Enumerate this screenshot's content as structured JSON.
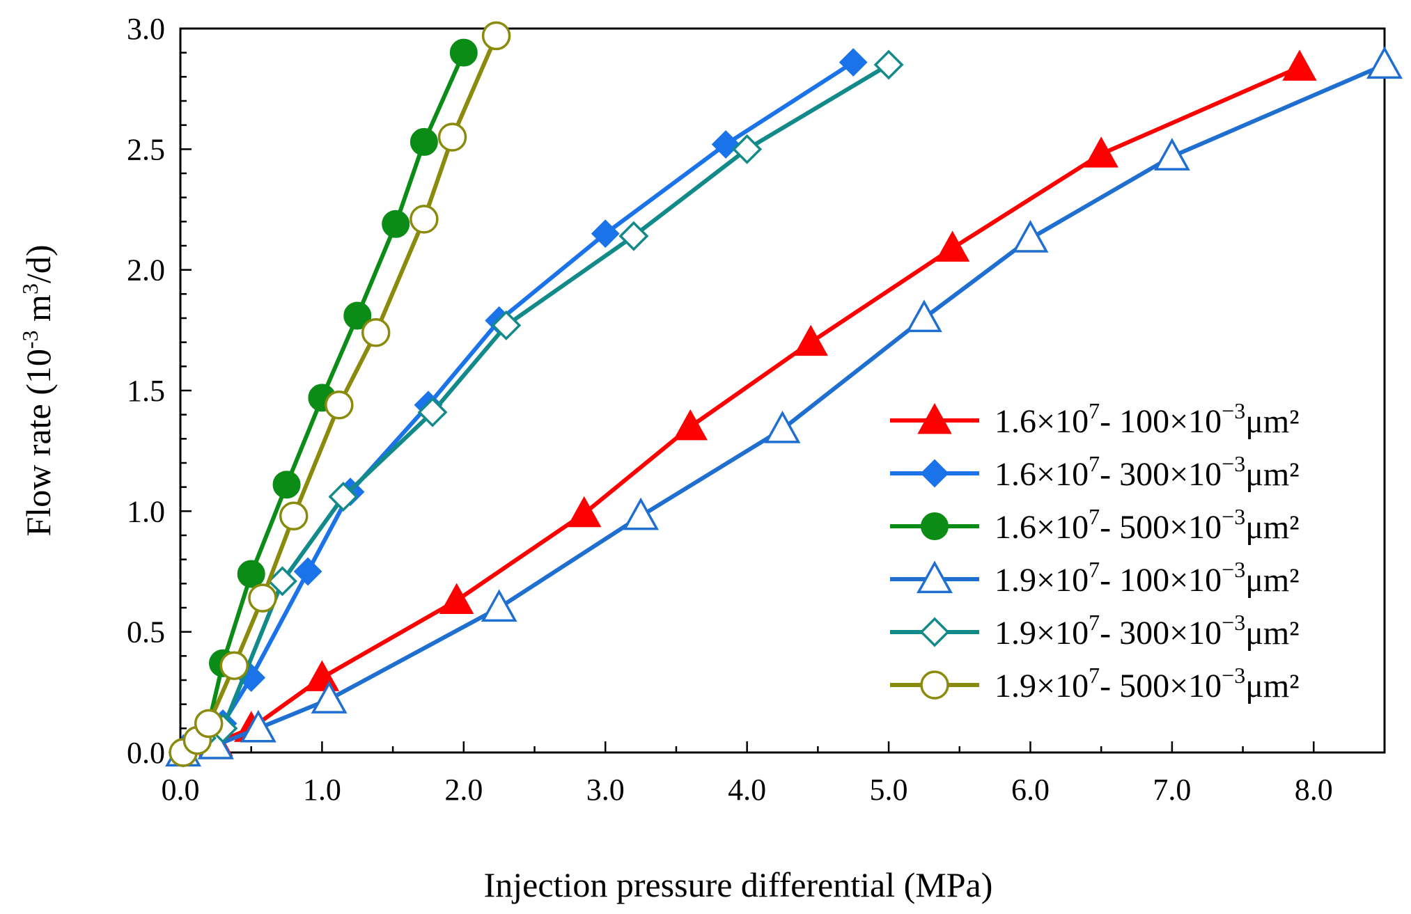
{
  "chart_data": {
    "type": "line",
    "title": "",
    "xlabel": "Injection pressure differential (MPa)",
    "ylabel": {
      "prefix": "Flow rate (10",
      "exp1": "-3",
      "mid": " m",
      "exp2": "3",
      "suffix": "/d)"
    },
    "xlim": [
      0,
      8.5
    ],
    "ylim": [
      0,
      3.0
    ],
    "x_ticks": [
      "0.0",
      "1.0",
      "2.0",
      "3.0",
      "4.0",
      "5.0",
      "6.0",
      "7.0",
      "8.0"
    ],
    "x_tick_values": [
      0,
      1,
      2,
      3,
      4,
      5,
      6,
      7,
      8
    ],
    "y_ticks": [
      "0.0",
      "0.5",
      "1.0",
      "1.5",
      "2.0",
      "2.5",
      "3.0"
    ],
    "y_tick_values": [
      0,
      0.5,
      1.0,
      1.5,
      2.0,
      2.5,
      3.0
    ],
    "grid": false,
    "legend_position": "right",
    "series": [
      {
        "name": "1.6×10^7- 100×10^-3μm²",
        "label_base": "1.6×10",
        "label_exp": "7",
        "label_mid": "- 100×10",
        "label_exp2": "−3",
        "label_unit": "μm²",
        "color": "#ff0000",
        "marker": "triangle",
        "filled": true,
        "x": [
          0.02,
          0.25,
          0.5,
          1.0,
          1.95,
          2.85,
          3.6,
          4.45,
          5.45,
          6.5,
          7.9
        ],
        "y": [
          0.0,
          0.04,
          0.1,
          0.31,
          0.63,
          0.99,
          1.35,
          1.7,
          2.09,
          2.48,
          2.84
        ]
      },
      {
        "name": "1.6×10^7- 300×10^-3μm²",
        "label_base": "1.6×10",
        "label_exp": "7",
        "label_mid": "- 300×10",
        "label_exp2": "−3",
        "label_unit": "μm²",
        "color": "#1a73e8",
        "marker": "diamond",
        "filled": true,
        "x": [
          0.02,
          0.15,
          0.3,
          0.5,
          0.9,
          1.2,
          1.75,
          2.25,
          3.0,
          3.85,
          4.75
        ],
        "y": [
          0.0,
          0.05,
          0.12,
          0.31,
          0.75,
          1.08,
          1.44,
          1.79,
          2.15,
          2.52,
          2.86
        ]
      },
      {
        "name": "1.6×10^7- 500×10^-3μm²",
        "label_base": "1.6×10",
        "label_exp": "7",
        "label_mid": "- 500×10",
        "label_exp2": "−3",
        "label_unit": "μm²",
        "color": "#0b8c16",
        "marker": "circle",
        "filled": true,
        "x": [
          0.02,
          0.2,
          0.3,
          0.5,
          0.75,
          1.0,
          1.25,
          1.52,
          1.72,
          2.0
        ],
        "y": [
          0.0,
          0.12,
          0.37,
          0.74,
          1.11,
          1.47,
          1.81,
          2.19,
          2.53,
          2.9
        ]
      },
      {
        "name": "1.9×10^7- 100×10^-3μm²",
        "label_base": "1.9×10",
        "label_exp": "7",
        "label_mid": "- 100×10",
        "label_exp2": "−3",
        "label_unit": "μm²",
        "color": "#1f6fd0",
        "marker": "triangle",
        "filled": false,
        "x": [
          0.02,
          0.25,
          0.55,
          1.05,
          2.25,
          3.25,
          4.25,
          5.25,
          6.0,
          7.0,
          8.5
        ],
        "y": [
          0.0,
          0.03,
          0.1,
          0.22,
          0.6,
          0.98,
          1.34,
          1.8,
          2.13,
          2.47,
          2.85
        ]
      },
      {
        "name": "1.9×10^7- 300×10^-3μm²",
        "label_base": "1.9×10",
        "label_exp": "7",
        "label_mid": "- 300×10",
        "label_exp2": "−3",
        "label_unit": "μm²",
        "color": "#138a8a",
        "marker": "diamond",
        "filled": false,
        "x": [
          0.02,
          0.15,
          0.3,
          0.72,
          1.15,
          1.78,
          2.3,
          3.2,
          4.0,
          5.0
        ],
        "y": [
          0.0,
          0.06,
          0.1,
          0.71,
          1.06,
          1.41,
          1.77,
          2.14,
          2.5,
          2.85
        ]
      },
      {
        "name": "1.9×10^7- 500×10^-3μm²",
        "label_base": "1.9×10",
        "label_exp": "7",
        "label_mid": "- 500×10",
        "label_exp2": "−3",
        "label_unit": "μm²",
        "color": "#8a8a0c",
        "marker": "circle",
        "filled": false,
        "x": [
          0.02,
          0.12,
          0.2,
          0.38,
          0.58,
          0.8,
          1.12,
          1.38,
          1.72,
          1.92,
          2.23
        ],
        "y": [
          0.0,
          0.05,
          0.12,
          0.36,
          0.64,
          0.98,
          1.44,
          1.74,
          2.21,
          2.55,
          2.97
        ]
      }
    ]
  }
}
